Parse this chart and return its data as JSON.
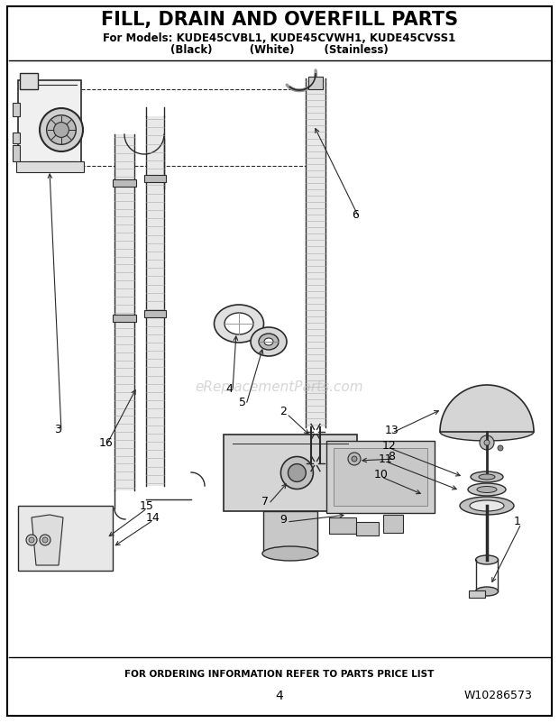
{
  "title": "FILL, DRAIN AND OVERFILL PARTS",
  "subtitle_line1": "For Models: KUDE45CVBL1, KUDE45CVWH1, KUDE45CVSS1",
  "subtitle_line2": "(Black)          (White)        (Stainless)",
  "footer_left": "FOR ORDERING INFORMATION REFER TO PARTS PRICE LIST",
  "footer_page": "4",
  "footer_right": "W10286573",
  "watermark": "eReplacementParts.com",
  "bg_color": "#ffffff",
  "border_color": "#000000",
  "title_fontsize": 15,
  "subtitle_fontsize": 8.5,
  "fig_width": 6.2,
  "fig_height": 8.03,
  "dpi": 100
}
